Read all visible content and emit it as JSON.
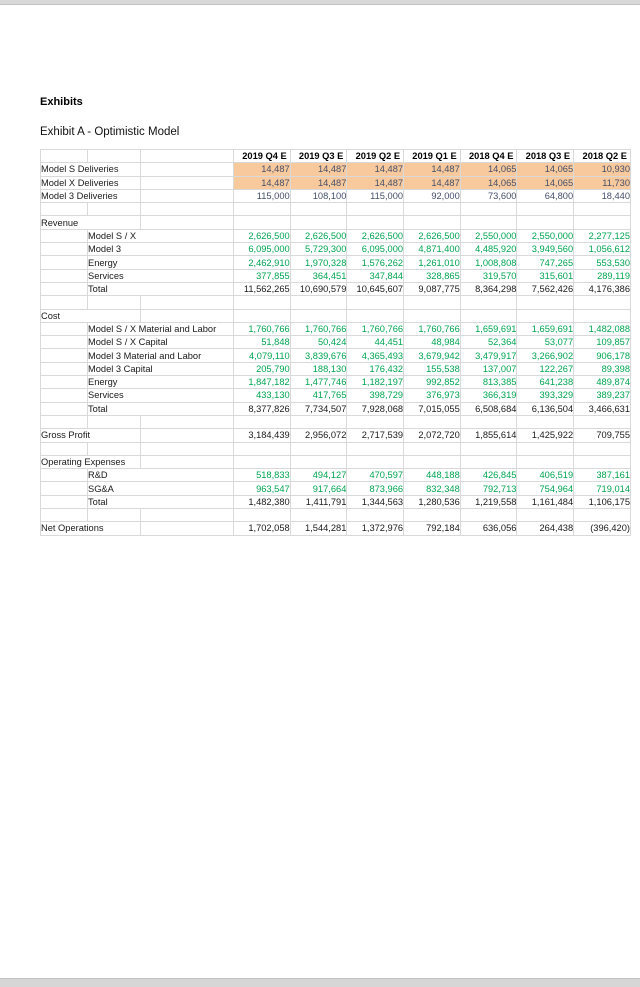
{
  "page": {
    "heading": "Exhibits",
    "subheading": "Exhibit A - Optimistic Model"
  },
  "colors": {
    "input_fill_orange": "#f8c99c",
    "input_text_navy": "#454f6a",
    "detail_text_green": "#00a551",
    "total_text_black": "#1a1a1a",
    "gridline": "#d9d9d9",
    "input_block_border": "#707070",
    "page_edge_strip": "#d8d8d8"
  },
  "table": {
    "column_headers": [
      "2019 Q4 E",
      "2019 Q3 E",
      "2019 Q2 E",
      "2019 Q1 E",
      "2018 Q4 E",
      "2018 Q3 E",
      "2018 Q2 E"
    ],
    "rows": [
      {
        "label": "Model S Deliveries",
        "indent": 0,
        "style": "input-orange",
        "values": [
          "14,487",
          "14,487",
          "14,487",
          "14,487",
          "14,065",
          "14,065",
          "10,930"
        ]
      },
      {
        "label": "Model X Deliveries",
        "indent": 0,
        "style": "input-orange",
        "values": [
          "14,487",
          "14,487",
          "14,487",
          "14,487",
          "14,065",
          "14,065",
          "11,730"
        ]
      },
      {
        "label": "Model 3 Deliveries",
        "indent": 0,
        "style": "input-boxed",
        "values": [
          "115,000",
          "108,100",
          "115,000",
          "92,000",
          "73,600",
          "64,800",
          "18,440"
        ]
      },
      {
        "style": "blank"
      },
      {
        "label": "Revenue",
        "indent": 0,
        "style": "section"
      },
      {
        "label": "Model S / X",
        "indent": 1,
        "style": "detail",
        "values": [
          "2,626,500",
          "2,626,500",
          "2,626,500",
          "2,626,500",
          "2,550,000",
          "2,550,000",
          "2,277,125"
        ]
      },
      {
        "label": "Model 3",
        "indent": 1,
        "style": "detail",
        "values": [
          "6,095,000",
          "5,729,300",
          "6,095,000",
          "4,871,400",
          "4,485,920",
          "3,949,560",
          "1,056,612"
        ]
      },
      {
        "label": "Energy",
        "indent": 1,
        "style": "detail",
        "values": [
          "2,462,910",
          "1,970,328",
          "1,576,262",
          "1,261,010",
          "1,008,808",
          "747,265",
          "553,530"
        ]
      },
      {
        "label": "Services",
        "indent": 1,
        "style": "detail",
        "values": [
          "377,855",
          "364,451",
          "347,844",
          "328,865",
          "319,570",
          "315,601",
          "289,119"
        ]
      },
      {
        "label": "Total",
        "indent": 1,
        "style": "total",
        "values": [
          "11,562,265",
          "10,690,579",
          "10,645,607",
          "9,087,775",
          "8,364,298",
          "7,562,426",
          "4,176,386"
        ]
      },
      {
        "style": "blank"
      },
      {
        "label": "Cost",
        "indent": 0,
        "style": "section"
      },
      {
        "label": "Model S / X Material and Labor",
        "indent": 1,
        "style": "detail",
        "values": [
          "1,760,766",
          "1,760,766",
          "1,760,766",
          "1,760,766",
          "1,659,691",
          "1,659,691",
          "1,482,088"
        ]
      },
      {
        "label": "Model S / X Capital",
        "indent": 1,
        "style": "detail",
        "values": [
          "51,848",
          "50,424",
          "44,451",
          "48,984",
          "52,364",
          "53,077",
          "109,857"
        ]
      },
      {
        "label": "Model 3 Material and Labor",
        "indent": 1,
        "style": "detail",
        "values": [
          "4,079,110",
          "3,839,676",
          "4,365,493",
          "3,679,942",
          "3,479,917",
          "3,266,902",
          "906,178"
        ]
      },
      {
        "label": "Model 3 Capital",
        "indent": 1,
        "style": "detail",
        "values": [
          "205,790",
          "188,130",
          "176,432",
          "155,538",
          "137,007",
          "122,267",
          "89,398"
        ]
      },
      {
        "label": "Energy",
        "indent": 1,
        "style": "detail",
        "values": [
          "1,847,182",
          "1,477,746",
          "1,182,197",
          "992,852",
          "813,385",
          "641,238",
          "489,874"
        ]
      },
      {
        "label": "Services",
        "indent": 1,
        "style": "detail",
        "values": [
          "433,130",
          "417,765",
          "398,729",
          "376,973",
          "366,319",
          "393,329",
          "389,237"
        ]
      },
      {
        "label": "Total",
        "indent": 1,
        "style": "total",
        "values": [
          "8,377,826",
          "7,734,507",
          "7,928,068",
          "7,015,055",
          "6,508,684",
          "6,136,504",
          "3,466,631"
        ]
      },
      {
        "style": "blank"
      },
      {
        "label": "Gross Profit",
        "indent": 0,
        "style": "total",
        "values": [
          "3,184,439",
          "2,956,072",
          "2,717,539",
          "2,072,720",
          "1,855,614",
          "1,425,922",
          "709,755"
        ]
      },
      {
        "style": "blank"
      },
      {
        "label": "Operating Expenses",
        "indent": 0,
        "style": "section"
      },
      {
        "label": "R&D",
        "indent": 1,
        "style": "detail",
        "values": [
          "518,833",
          "494,127",
          "470,597",
          "448,188",
          "426,845",
          "406,519",
          "387,161"
        ]
      },
      {
        "label": "SG&A",
        "indent": 1,
        "style": "detail",
        "values": [
          "963,547",
          "917,664",
          "873,966",
          "832,348",
          "792,713",
          "754,964",
          "719,014"
        ]
      },
      {
        "label": "Total",
        "indent": 1,
        "style": "total",
        "values": [
          "1,482,380",
          "1,411,791",
          "1,344,563",
          "1,280,536",
          "1,219,558",
          "1,161,484",
          "1,106,175"
        ]
      },
      {
        "style": "blank"
      },
      {
        "label": "Net Operations",
        "indent": 0,
        "style": "total",
        "values": [
          "1,702,058",
          "1,544,281",
          "1,372,976",
          "792,184",
          "636,056",
          "264,438",
          "(396,420)"
        ]
      }
    ]
  }
}
